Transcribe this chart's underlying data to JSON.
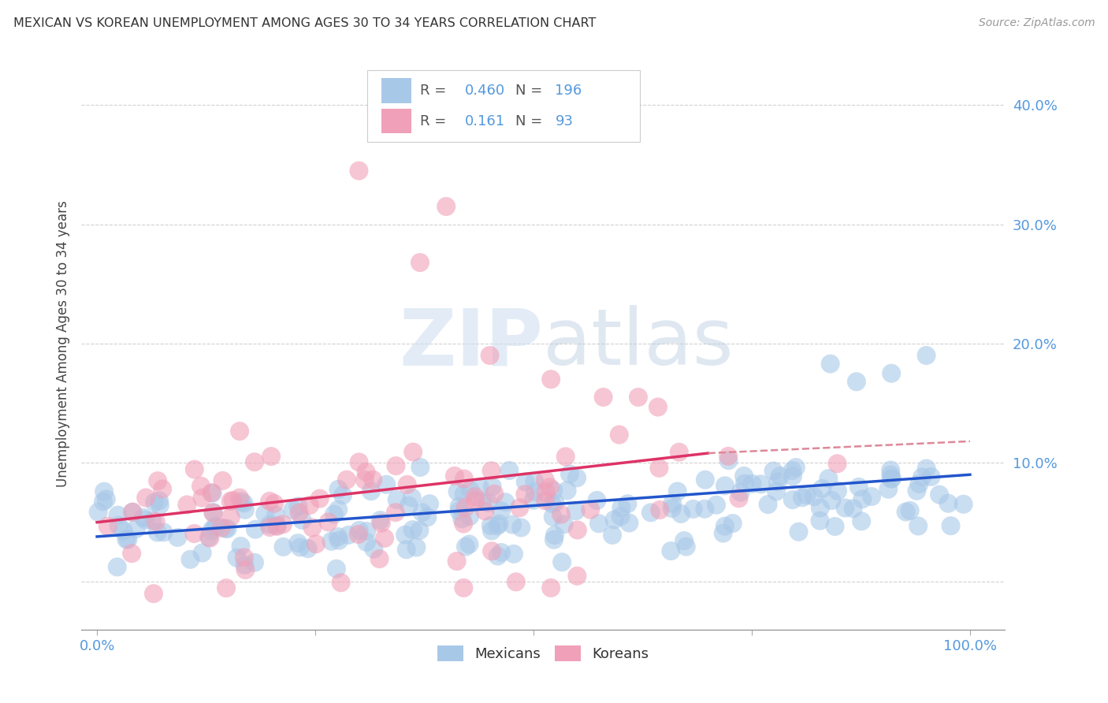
{
  "title": "MEXICAN VS KOREAN UNEMPLOYMENT AMONG AGES 30 TO 34 YEARS CORRELATION CHART",
  "source": "Source: ZipAtlas.com",
  "ylabel": "Unemployment Among Ages 30 to 34 years",
  "background_color": "#ffffff",
  "mexicans_color": "#a8c8e8",
  "koreans_color": "#f0a0b8",
  "trend_mexican_color": "#2255cc",
  "trend_korean_color": "#dd3366",
  "trend_korean_dash_color": "#dd8899",
  "mexican_R": 0.46,
  "mexican_N": 196,
  "korean_R": 0.161,
  "korean_N": 93,
  "R_color": "#5599dd",
  "N_color": "#5599dd",
  "legend_R_label_color": "#777777",
  "watermark_color": "#d8eaf8",
  "xtick_color": "#5599dd",
  "ytick_color": "#5599dd"
}
